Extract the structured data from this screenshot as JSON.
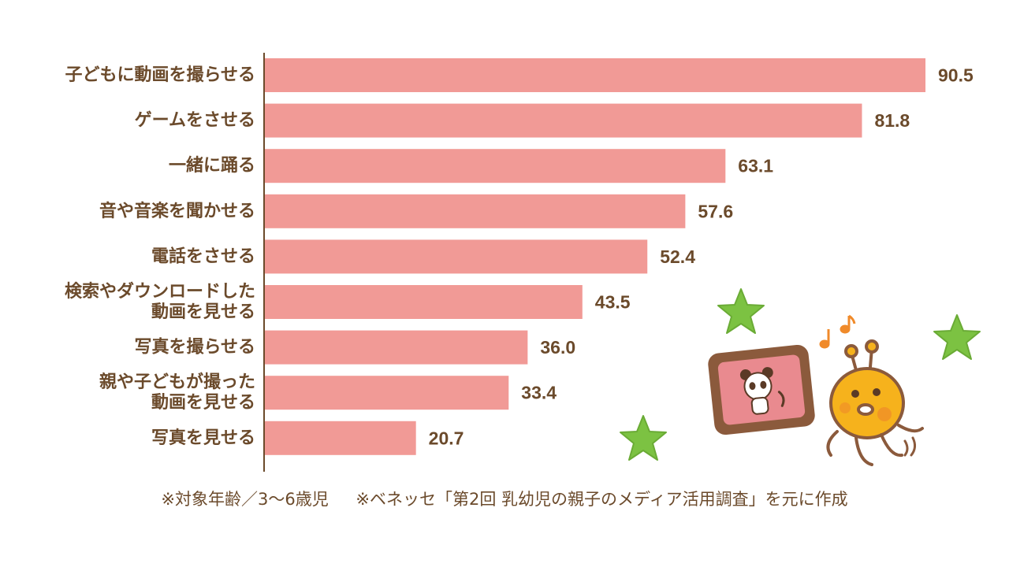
{
  "chart_data": {
    "type": "bar",
    "orientation": "horizontal",
    "categories": [
      [
        "子どもに動画を撮らせる"
      ],
      [
        "ゲームをさせる"
      ],
      [
        "一緒に踊る"
      ],
      [
        "音や音楽を聞かせる"
      ],
      [
        "電話をさせる"
      ],
      [
        "検索やダウンロードした",
        "動画を見せる"
      ],
      [
        "写真を撮らせる"
      ],
      [
        "親や子どもが撮った",
        "動画を見せる"
      ],
      [
        "写真を見せる"
      ]
    ],
    "values": [
      90.5,
      81.8,
      63.1,
      57.6,
      52.4,
      43.5,
      36.0,
      33.4,
      20.7
    ],
    "value_labels": [
      "90.5",
      "81.8",
      "63.1",
      "57.6",
      "52.4",
      "43.5",
      "36.0",
      "33.4",
      "20.7"
    ],
    "xlim": [
      0,
      100
    ],
    "grid": false,
    "bar_color": "#f19a96",
    "text_color": "#6b4a2b"
  },
  "footnotes": {
    "note1": "※対象年齢／3〜6歳児",
    "note2": "※ベネッセ「第2回 乳幼児の親子のメディア活用調査」を元に作成"
  },
  "decorations": {
    "star_color": "#7cc242",
    "frame_color": "#8b5a3c",
    "photo_color": "#e98a8f",
    "character_color": "#f6b21c",
    "icons": [
      "star-icon",
      "photo-frame-icon",
      "panda-icon",
      "music-note-icon",
      "giraffe-character-icon"
    ]
  }
}
